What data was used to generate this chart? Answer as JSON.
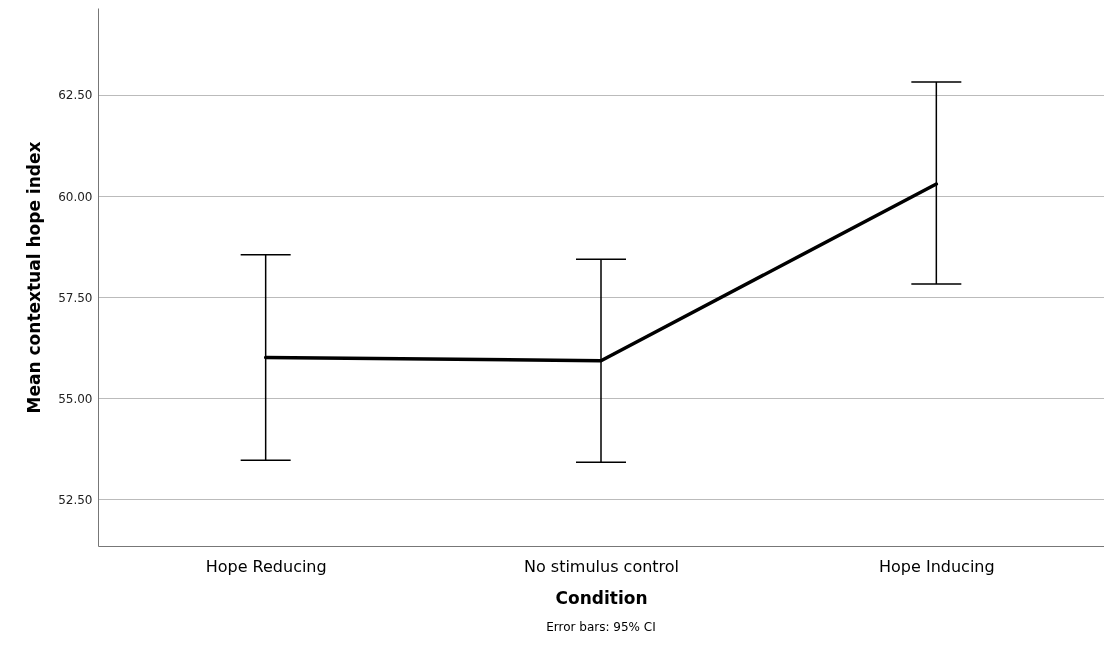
{
  "chart_data": {
    "type": "line",
    "xlabel": "Condition",
    "ylabel": "Mean contextual hope index",
    "annotations": [
      "Error bars: 95% CI"
    ],
    "categories": [
      "Hope Reducing",
      "No stimulus control",
      "Hope Inducing"
    ],
    "series": [
      {
        "color": "#000000",
        "values": [
          56.01,
          55.93,
          60.3
        ],
        "errors": [
          [
            53.47,
            58.55
          ],
          [
            53.42,
            58.44
          ],
          [
            57.83,
            62.82
          ]
        ]
      }
    ],
    "ylim": [
      51.35,
      64.65
    ],
    "yticks": [
      {
        "value": 52.5,
        "label": "52.50"
      },
      {
        "value": 55,
        "label": "55.00"
      },
      {
        "value": 57.5,
        "label": "57.50"
      },
      {
        "value": 60,
        "label": "60.00"
      },
      {
        "value": 62.5,
        "label": "62.50"
      }
    ],
    "grid": "y"
  }
}
